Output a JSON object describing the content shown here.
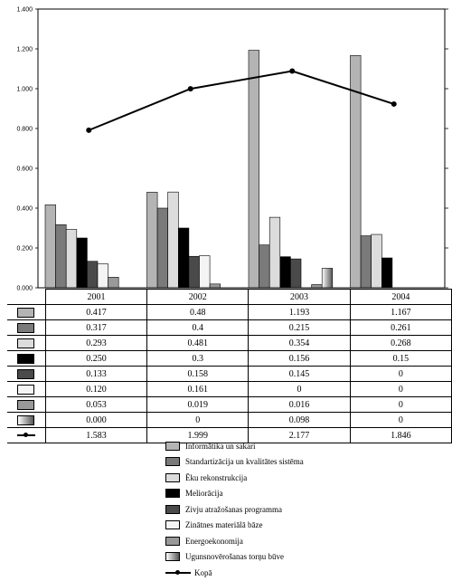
{
  "chart_data": {
    "type": "bar",
    "categories": [
      "2001",
      "2002",
      "2003",
      "2004"
    ],
    "ylim": [
      0,
      1.4
    ],
    "yticks": [
      "0.000",
      "0.200",
      "0.400",
      "0.600",
      "0.800",
      "1.000",
      "1.200",
      "1.400"
    ],
    "series": [
      {
        "name": "Informātika un sakari",
        "color": "#b4b4b4",
        "values": [
          0.417,
          0.48,
          1.193,
          1.167
        ],
        "labels": [
          "0.417",
          "0.48",
          "1.193",
          "1.167"
        ]
      },
      {
        "name": "Standartizācija un kvalitātes sistēma",
        "color": "#7a7a7a",
        "values": [
          0.317,
          0.4,
          0.215,
          0.261
        ],
        "labels": [
          "0.317",
          "0.4",
          "0.215",
          "0.261"
        ]
      },
      {
        "name": "Ēku rekonstrukcija",
        "color": "#dcdcdc",
        "values": [
          0.293,
          0.481,
          0.354,
          0.268
        ],
        "labels": [
          "0.293",
          "0.481",
          "0.354",
          "0.268"
        ]
      },
      {
        "name": "Meliorācija",
        "color": "#000000",
        "values": [
          0.25,
          0.3,
          0.156,
          0.15
        ],
        "labels": [
          "0.250",
          "0.3",
          "0.156",
          "0.15"
        ]
      },
      {
        "name": "Zivju atražošanas programma",
        "color": "#4a4a4a",
        "values": [
          0.133,
          0.158,
          0.145,
          0
        ],
        "labels": [
          "0.133",
          "0.158",
          "0.145",
          "0"
        ]
      },
      {
        "name": "Zinātnes materiālā bāze",
        "color": "#f4f4f4",
        "values": [
          0.12,
          0.161,
          0,
          0
        ],
        "labels": [
          "0.120",
          "0.161",
          "0",
          "0"
        ]
      },
      {
        "name": "Energoekonomija",
        "color": "#999999",
        "values": [
          0.053,
          0.019,
          0.016,
          0
        ],
        "labels": [
          "0.053",
          "0.019",
          "0.016",
          "0"
        ]
      },
      {
        "name": "Ugunsnovērošanas torņu būve",
        "color": "gradient",
        "values": [
          0,
          0,
          0.098,
          0
        ],
        "labels": [
          "0.000",
          "0",
          "0.098",
          "0"
        ]
      }
    ],
    "line_series": {
      "name": "Kopā",
      "color": "#000000",
      "values": [
        1.583,
        1.999,
        2.177,
        1.846
      ],
      "labels": [
        "1.583",
        "1.999",
        "2.177",
        "1.846"
      ],
      "ylim": [
        0,
        2.8
      ]
    },
    "legend_position": "bottom",
    "grid": false
  }
}
